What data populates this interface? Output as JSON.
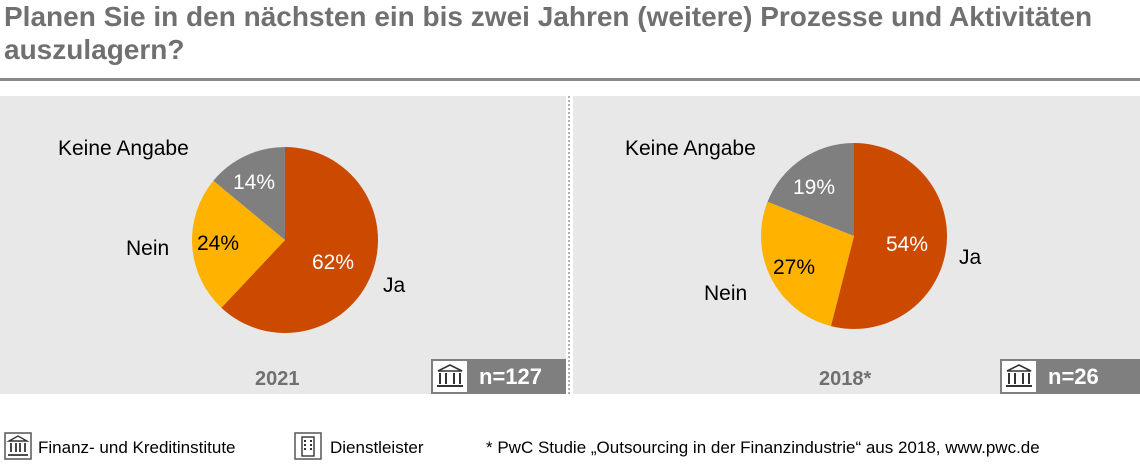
{
  "title": "Planen Sie in den nächsten ein bis zwei Jahren (weitere) Prozesse und Aktivitäten auszulagern?",
  "colors": {
    "ja": "#cc4a00",
    "nein": "#ffb300",
    "keine_angabe": "#7f7f7f"
  },
  "chart_data": [
    {
      "type": "pie",
      "year_label": "2021",
      "n_label": "n=127",
      "n_icon": "bank-icon",
      "slices": [
        {
          "label": "Ja",
          "value": 62,
          "value_label": "62%"
        },
        {
          "label": "Nein",
          "value": 24,
          "value_label": "24%"
        },
        {
          "label": "Keine Angabe",
          "value": 14,
          "value_label": "14%"
        }
      ]
    },
    {
      "type": "pie",
      "year_label": "2018*",
      "n_label": "n=26",
      "n_icon": "bank-icon",
      "slices": [
        {
          "label": "Ja",
          "value": 54,
          "value_label": "54%"
        },
        {
          "label": "Nein",
          "value": 27,
          "value_label": "27%"
        },
        {
          "label": "Keine Angabe",
          "value": 19,
          "value_label": "19%"
        }
      ]
    }
  ],
  "legend": {
    "finanz_label": "Finanz- und Kreditinstitute",
    "dienst_label": "Dienstleister",
    "footnote": "*   PwC Studie „Outsourcing in der Finanzindustrie“ aus 2018, www.pwc.de"
  }
}
